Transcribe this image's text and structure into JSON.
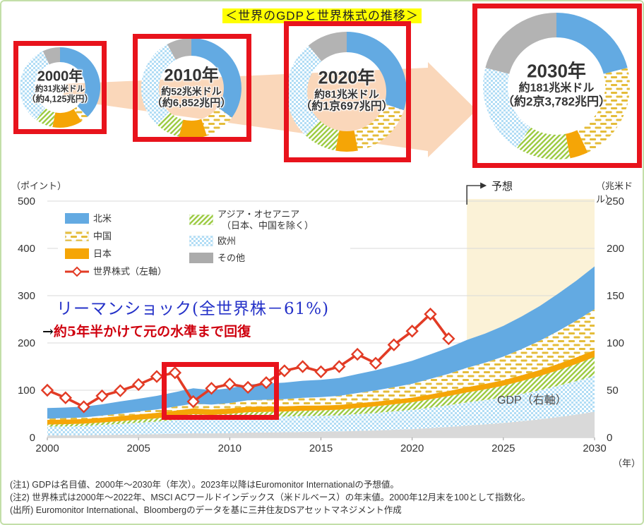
{
  "page": {
    "title": "＜世界のGDPと世界株式の推移＞"
  },
  "colors": {
    "north_america": "#63AAE2",
    "japan": "#F5A506",
    "china_dash": "#E4BC3A",
    "asia_hatch": "#9DCB43",
    "europe_dots": "#B2DDF5",
    "other_donut": "#B3B3B3",
    "other_area": "#D9D9D9",
    "equity_line": "#E23B25",
    "red_box": "#E8131C",
    "forecast_bg": "#FBF2D7",
    "arrow": "#FAD7BA",
    "highlight": "#FFFF00"
  },
  "donuts": {
    "segments_order": [
      "北米",
      "中国",
      "日本",
      "アジア・オセアニア（日本、中国を除く）",
      "欧州",
      "その他"
    ],
    "items": [
      {
        "year_label": "2000年",
        "usd": "約31兆米ドル",
        "jpy": "（約4,125兆円）",
        "shares_pct": [
          38,
          3,
          12,
          7,
          33,
          7
        ]
      },
      {
        "year_label": "2010年",
        "usd": "約52兆米ドル",
        "jpy": "（約6,852兆円）",
        "shares_pct": [
          35,
          10,
          9,
          8,
          30,
          8
        ]
      },
      {
        "year_label": "2020年",
        "usd": "約81兆米ドル",
        "jpy": "（約1京697兆円）",
        "shares_pct": [
          30,
          17,
          6,
          9,
          27,
          11
        ]
      },
      {
        "year_label": "2030年",
        "usd": "約181兆米ドル",
        "jpy": "（約2京3,782兆円）",
        "shares_pct": [
          21,
          22,
          4,
          12,
          20,
          21
        ]
      }
    ]
  },
  "legend": {
    "items": [
      {
        "label": "北米",
        "swatch": "northamerica"
      },
      {
        "label": "中国",
        "swatch": "china"
      },
      {
        "label": "日本",
        "swatch": "japan"
      },
      {
        "label": "世界株式（左軸）",
        "swatch": "line"
      },
      {
        "label": "アジア・オセアニア",
        "label2": "（日本、中国を除く）",
        "swatch": "asia"
      },
      {
        "label": "欧州",
        "swatch": "europe"
      },
      {
        "label": "その他",
        "swatch": "other"
      }
    ]
  },
  "annotations": {
    "lehman": "リーマンショック(全世界株－61%)",
    "recovery_arrow": "→",
    "recovery": "約5年半かけて元の水準まで回復",
    "gdp_axis": "GDP（右軸）",
    "forecast": "予想"
  },
  "chart_data": {
    "type": "combo: stacked-area (GDP, right axis) + line (world equity index, left axis)",
    "x": [
      2000,
      2001,
      2002,
      2003,
      2004,
      2005,
      2006,
      2007,
      2008,
      2009,
      2010,
      2011,
      2012,
      2013,
      2014,
      2015,
      2016,
      2017,
      2018,
      2019,
      2020,
      2021,
      2022,
      2023,
      2024,
      2025,
      2026,
      2027,
      2028,
      2029,
      2030
    ],
    "x_ticks": [
      2000,
      2005,
      2010,
      2015,
      2020,
      2025,
      2030
    ],
    "x_unit": "（年）",
    "left_axis": {
      "label": "（ポイント）",
      "ticks": [
        0,
        100,
        200,
        300,
        400,
        500
      ],
      "range": [
        0,
        500
      ]
    },
    "right_axis": {
      "label": "（兆米ドル）",
      "ticks": [
        0,
        50,
        100,
        150,
        200,
        250
      ],
      "range": [
        0,
        250
      ]
    },
    "forecast": {
      "start_year": 2023,
      "label": "予想"
    },
    "grid": true,
    "area_series_bottom_to_top": [
      {
        "name": "その他",
        "style": "gray",
        "values": [
          2.2,
          2.3,
          2.4,
          2.7,
          3.0,
          3.3,
          3.6,
          4.0,
          4.5,
          4.4,
          4.7,
          5.2,
          5.4,
          5.6,
          5.9,
          6.1,
          6.4,
          7.0,
          7.5,
          8.2,
          8.9,
          10.0,
          11.2,
          12.6,
          13.9,
          15.3,
          17.2,
          19.2,
          21.6,
          24.2,
          27.2
        ]
      },
      {
        "name": "欧州",
        "style": "europe-dots",
        "values": [
          9.3,
          9.5,
          9.8,
          10.5,
          11.4,
          12.3,
          13.2,
          14.4,
          15.6,
          15.0,
          15.6,
          16.5,
          16.5,
          16.5,
          16.8,
          16.8,
          17.0,
          17.8,
          18.5,
          19.4,
          20.3,
          21.6,
          23.0,
          24.5,
          25.7,
          27.1,
          28.9,
          30.9,
          33.1,
          35.5,
          38.0
        ]
      },
      {
        "name": "アジア・オセアニア（日本、中国を除く）",
        "style": "asia-hatch",
        "values": [
          2.2,
          2.3,
          2.4,
          2.7,
          3.0,
          3.3,
          3.6,
          4.0,
          4.5,
          4.4,
          4.7,
          5.1,
          5.2,
          5.4,
          5.6,
          5.8,
          6.0,
          6.5,
          7.0,
          7.5,
          8.1,
          8.9,
          9.7,
          10.6,
          11.4,
          12.4,
          13.6,
          14.9,
          16.4,
          18.1,
          19.9
        ]
      },
      {
        "name": "日本",
        "style": "japan-orange",
        "values": [
          5.0,
          4.9,
          4.9,
          5.1,
          5.3,
          5.5,
          5.7,
          6.0,
          6.2,
          5.8,
          5.7,
          5.9,
          5.7,
          5.5,
          5.4,
          5.2,
          5.0,
          5.0,
          5.0,
          4.9,
          4.9,
          5.1,
          5.3,
          5.6,
          5.7,
          5.9,
          6.1,
          6.4,
          6.7,
          7.0,
          7.2
        ]
      },
      {
        "name": "中国",
        "style": "china-dash",
        "values": [
          1.2,
          1.5,
          1.8,
          2.1,
          2.6,
          3.1,
          3.6,
          4.3,
          5.0,
          5.2,
          5.7,
          6.6,
          7.1,
          7.6,
          8.3,
          8.8,
          9.6,
          10.7,
          11.8,
          13.1,
          14.6,
          16.4,
          18.2,
          20.4,
          22.4,
          24.8,
          27.6,
          30.9,
          34.7,
          38.8,
          43.4
        ]
      },
      {
        "name": "北米",
        "style": "northamerica-blue",
        "values": [
          11.2,
          11.2,
          11.3,
          12.0,
          12.8,
          13.5,
          14.3,
          15.3,
          16.2,
          15.3,
          15.6,
          16.8,
          17.1,
          17.4,
          18.0,
          18.3,
          18.9,
          20.1,
          21.3,
          22.8,
          24.3,
          26.0,
          27.6,
          29.4,
          30.8,
          32.5,
          34.6,
          36.8,
          39.5,
          42.3,
          45.3
        ]
      }
    ],
    "line_series": {
      "name": "世界株式（左軸）",
      "axis": "left",
      "years": [
        2000,
        2001,
        2002,
        2003,
        2004,
        2005,
        2006,
        2007,
        2008,
        2009,
        2010,
        2011,
        2012,
        2013,
        2014,
        2015,
        2016,
        2017,
        2018,
        2019,
        2020,
        2021,
        2022
      ],
      "values": [
        100,
        84,
        65,
        88,
        99,
        112,
        129,
        137,
        76,
        104,
        113,
        106,
        116,
        141,
        150,
        139,
        150,
        176,
        157,
        196,
        225,
        261,
        209
      ]
    }
  },
  "notes": [
    "(注1) GDPは名目値、2000年～2030年（年次）。2023年以降はEuromonitor Internationalの予想値。",
    "(注2) 世界株式は2000年～2022年、MSCI ACワールドインデックス（米ドルベース）の年末値。2000年12月末を100として指数化。",
    "(出所) Euromonitor International、Bloombergのデータを基に三井住友DSアセットマネジメント作成"
  ]
}
